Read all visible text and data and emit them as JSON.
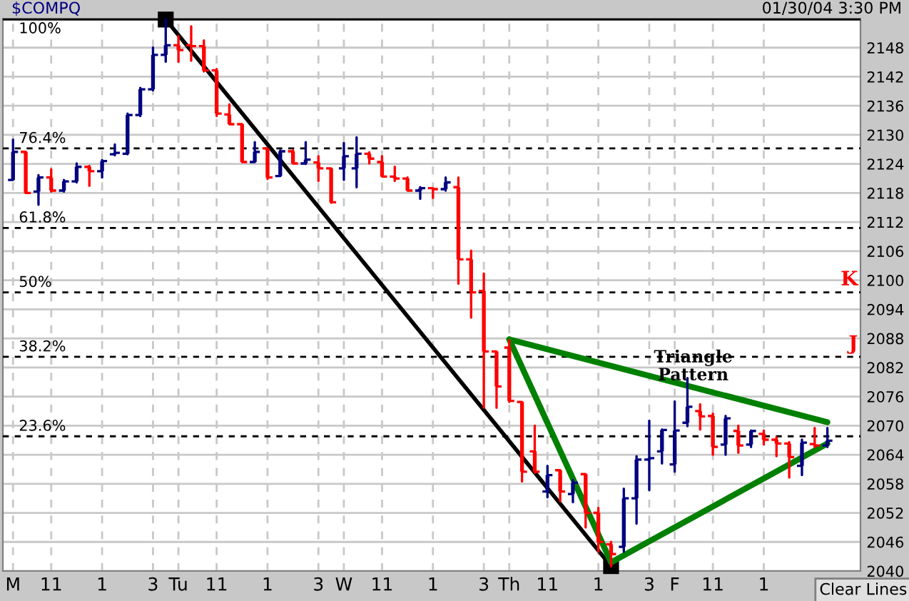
{
  "chart_data": {
    "type": "candlestick",
    "title": "$COMPQ",
    "subtitle": "01/30/04 3:30 PM",
    "categories": [
      "M",
      null,
      null,
      "11",
      null,
      null,
      null,
      "1",
      null,
      null,
      null,
      "3",
      null,
      "Tu",
      null,
      null,
      "11",
      null,
      null,
      null,
      "1",
      null,
      null,
      null,
      "3",
      null,
      "W",
      null,
      null,
      "11",
      null,
      null,
      null,
      "1",
      null,
      null,
      null,
      "3",
      null,
      "Th",
      null,
      null,
      "11",
      null,
      null,
      null,
      "1",
      null,
      null,
      null,
      "3",
      null,
      "F",
      null,
      null,
      "11",
      null,
      null,
      null,
      "1",
      null,
      null,
      null,
      null,
      null
    ],
    "ohlc": [
      [
        2120.7,
        2129,
        2120.7,
        2126.5
      ],
      [
        2126.5,
        2126.5,
        2118,
        2118
      ],
      [
        2118.3,
        2121.7,
        2115.6,
        2121.2
      ],
      [
        2121.2,
        2122.9,
        2118.3,
        2118.5
      ],
      [
        2118.5,
        2120.7,
        2118.3,
        2120.4
      ],
      [
        2120.4,
        2124.1,
        2120.2,
        2123.4
      ],
      [
        2123.4,
        2123.6,
        2119.5,
        2122.5
      ],
      [
        2122.5,
        2124.8,
        2121.2,
        2124.6
      ],
      [
        2126,
        2128,
        2125.8,
        2126.3
      ],
      [
        2126.1,
        2134.4,
        2126,
        2134.1
      ],
      [
        2134.1,
        2139.7,
        2133.9,
        2139.4
      ],
      [
        2139.4,
        2148,
        2139.2,
        2146.5
      ],
      [
        2146.5,
        2153.8,
        2145.1,
        2148.5
      ],
      [
        2148.5,
        2150.4,
        2145.1,
        2147.5
      ],
      [
        2148.5,
        2152.4,
        2145.3,
        2148.3
      ],
      [
        2148.3,
        2149.5,
        2143.1,
        2143.3
      ],
      [
        2143.3,
        2143.6,
        2133.9,
        2134.4
      ],
      [
        2134.2,
        2136.3,
        2132.2,
        2132.2
      ],
      [
        2132.2,
        2132.2,
        2124.4,
        2124.4
      ],
      [
        2124.4,
        2128.5,
        2124.4,
        2126.5
      ],
      [
        2127.2,
        2127.2,
        2120.9,
        2121.2
      ],
      [
        2121.5,
        2126.8,
        2121.5,
        2126.6
      ],
      [
        2126.6,
        2126.8,
        2124.1,
        2124.1
      ],
      [
        2124.1,
        2128.5,
        2124,
        2124.9
      ],
      [
        2124.3,
        2125.6,
        2120.5,
        2123.1
      ],
      [
        2123.1,
        2123.1,
        2116,
        2116.1
      ],
      [
        2123.1,
        2128.3,
        2120.7,
        2125.6
      ],
      [
        2123.1,
        2129.5,
        2119.2,
        2126.1
      ],
      [
        2126.1,
        2126.4,
        2124.1,
        2125.1
      ],
      [
        2124.4,
        2125.6,
        2121.4,
        2121.4
      ],
      [
        2121.4,
        2123.4,
        2120.5,
        2121
      ],
      [
        2121,
        2121.2,
        2118.5,
        2118.5
      ],
      [
        2118.5,
        2119.2,
        2116.8,
        2119
      ],
      [
        2119,
        2119,
        2117,
        2118.8
      ],
      [
        2118.8,
        2121.2,
        2118.5,
        2120.2
      ],
      [
        2119.2,
        2121.2,
        2099.3,
        2104.3
      ],
      [
        2104.3,
        2106.1,
        2092.3,
        2097.5
      ],
      [
        2097.8,
        2101.4,
        2073.7,
        2085.3
      ],
      [
        2085.3,
        2085.3,
        2073.7,
        2078.1
      ],
      [
        2086.1,
        2087.6,
        2074.9,
        2075.1
      ],
      [
        2074.9,
        2074.9,
        2058.5,
        2060.5
      ],
      [
        2064.7,
        2070,
        2060.3,
        2060.5
      ],
      [
        2056.4,
        2061.7,
        2055.2,
        2059.8
      ],
      [
        2060.8,
        2060.8,
        2054.4,
        2056.4
      ],
      [
        2055.9,
        2058.8,
        2054.2,
        2058.2
      ],
      [
        2060,
        2060,
        2049,
        2052
      ],
      [
        2052,
        2053,
        2044,
        2046
      ],
      [
        2045.5,
        2046,
        2041,
        2043.5
      ],
      [
        2045,
        2057,
        2044,
        2055
      ],
      [
        2055,
        2063.7,
        2049.8,
        2063
      ],
      [
        2063,
        2071,
        2056.7,
        2063.3
      ],
      [
        2064.7,
        2069.2,
        2062.2,
        2069.1
      ],
      [
        2062,
        2075,
        2060.5,
        2069
      ],
      [
        2070.6,
        2079.8,
        2069.9,
        2073.9
      ],
      [
        2073,
        2074.4,
        2069.2,
        2071.9
      ],
      [
        2072,
        2072.5,
        2064,
        2065.6
      ],
      [
        2066.1,
        2072,
        2064,
        2071.5
      ],
      [
        2068.9,
        2070,
        2064.4,
        2065.9
      ],
      [
        2066.1,
        2069,
        2065.6,
        2068.9
      ],
      [
        2068.3,
        2069,
        2066.1,
        2067.1
      ],
      [
        2067.1,
        2067.6,
        2063.7,
        2066.3
      ],
      [
        2066.3,
        2066.6,
        2059.3,
        2063.5
      ],
      [
        2061.7,
        2067.1,
        2059.8,
        2066.5
      ],
      [
        2066.2,
        2069.5,
        2065.6,
        2065.9
      ],
      [
        2065.9,
        2069.5,
        2065.6,
        2066.9
      ]
    ],
    "colors": [
      "#000080",
      "#ff0000",
      "#000080",
      "#ff0000",
      "#000080",
      "#000080",
      "#ff0000",
      "#000080",
      "#000080",
      "#000080",
      "#000080",
      "#000080",
      "#000080",
      "#ff0000",
      "#ff0000",
      "#ff0000",
      "#ff0000",
      "#ff0000",
      "#ff0000",
      "#000080",
      "#ff0000",
      "#000080",
      "#ff0000",
      "#000080",
      "#ff0000",
      "#ff0000",
      "#000080",
      "#000080",
      "#ff0000",
      "#ff0000",
      "#ff0000",
      "#ff0000",
      "#000080",
      "#ff0000",
      "#000080",
      "#ff0000",
      "#ff0000",
      "#ff0000",
      "#ff0000",
      "#ff0000",
      "#ff0000",
      "#ff0000",
      "#000080",
      "#ff0000",
      "#000080",
      "#ff0000",
      "#ff0000",
      "#ff0000",
      "#000080",
      "#000080",
      "#000080",
      "#000080",
      "#000080",
      "#000080",
      "#ff0000",
      "#ff0000",
      "#000080",
      "#ff0000",
      "#000080",
      "#ff0000",
      "#ff0000",
      "#ff0000",
      "#000080",
      "#ff0000",
      "#000080"
    ],
    "series": [
      {
        "type": "line",
        "color": "#000000",
        "marker": "square",
        "values": [
          null,
          null,
          null,
          null,
          null,
          null,
          null,
          null,
          null,
          null,
          null,
          null,
          2153.8,
          null,
          null,
          null,
          null,
          null,
          null,
          null,
          null,
          null,
          null,
          null,
          null,
          null,
          null,
          null,
          null,
          null,
          null,
          null,
          null,
          null,
          null,
          null,
          null,
          null,
          null,
          null,
          null,
          null,
          null,
          null,
          null,
          null,
          null,
          2041,
          null,
          null,
          null,
          null,
          null,
          null,
          null,
          null,
          null,
          null,
          null,
          null,
          null,
          null,
          null,
          null,
          null
        ]
      },
      {
        "type": "line",
        "color": "#008000",
        "values": [
          null,
          null,
          null,
          null,
          null,
          null,
          null,
          null,
          null,
          null,
          null,
          null,
          null,
          null,
          null,
          null,
          null,
          null,
          null,
          null,
          null,
          null,
          null,
          null,
          null,
          null,
          null,
          null,
          null,
          null,
          null,
          null,
          null,
          null,
          null,
          null,
          null,
          null,
          null,
          2087.8,
          null,
          null,
          null,
          null,
          null,
          null,
          null,
          2041.8,
          null,
          null,
          null,
          null,
          null,
          null,
          null,
          null,
          null,
          null,
          null,
          null,
          null,
          null,
          null,
          null,
          2066.3
        ]
      },
      {
        "type": "line",
        "color": "#008000",
        "values": [
          null,
          null,
          null,
          null,
          null,
          null,
          null,
          null,
          null,
          null,
          null,
          null,
          null,
          null,
          null,
          null,
          null,
          null,
          null,
          null,
          null,
          null,
          null,
          null,
          null,
          null,
          null,
          null,
          null,
          null,
          null,
          null,
          null,
          null,
          null,
          null,
          null,
          null,
          null,
          2087.8,
          null,
          null,
          null,
          null,
          null,
          null,
          null,
          null,
          null,
          null,
          null,
          null,
          null,
          null,
          null,
          null,
          null,
          null,
          null,
          null,
          null,
          null,
          null,
          null,
          2070.7
        ]
      }
    ],
    "ref_lines": [
      {
        "axis": "y",
        "value": 2153.8,
        "color": "#000000",
        "line_style": "solid"
      },
      {
        "axis": "y",
        "value": 2127.2,
        "color": "#000000",
        "line_style": "dashed"
      },
      {
        "axis": "y",
        "value": 2110.8,
        "color": "#000000",
        "line_style": "dashed"
      },
      {
        "axis": "y",
        "value": 2097.5,
        "label": "K",
        "color": "#000000",
        "line_style": "dashed"
      },
      {
        "axis": "y",
        "value": 2084.2,
        "label": "J",
        "color": "#000000",
        "line_style": "dashed"
      },
      {
        "axis": "y",
        "value": 2067.8,
        "color": "#000000",
        "line_style": "dashed"
      }
    ],
    "annotations": [
      "100%",
      "76.4%",
      "61.8%",
      "50%",
      "38.2%",
      "23.6%",
      "Triangle\nPattern",
      "Clear Lines"
    ],
    "ylim": [
      2040,
      2154
    ],
    "yticks": [
      2040,
      2046,
      2052,
      2058,
      2064,
      2070,
      2076,
      2082,
      2088,
      2094,
      2100,
      2106,
      2112,
      2118,
      2124,
      2130,
      2136,
      2142,
      2148
    ],
    "grid": true
  }
}
